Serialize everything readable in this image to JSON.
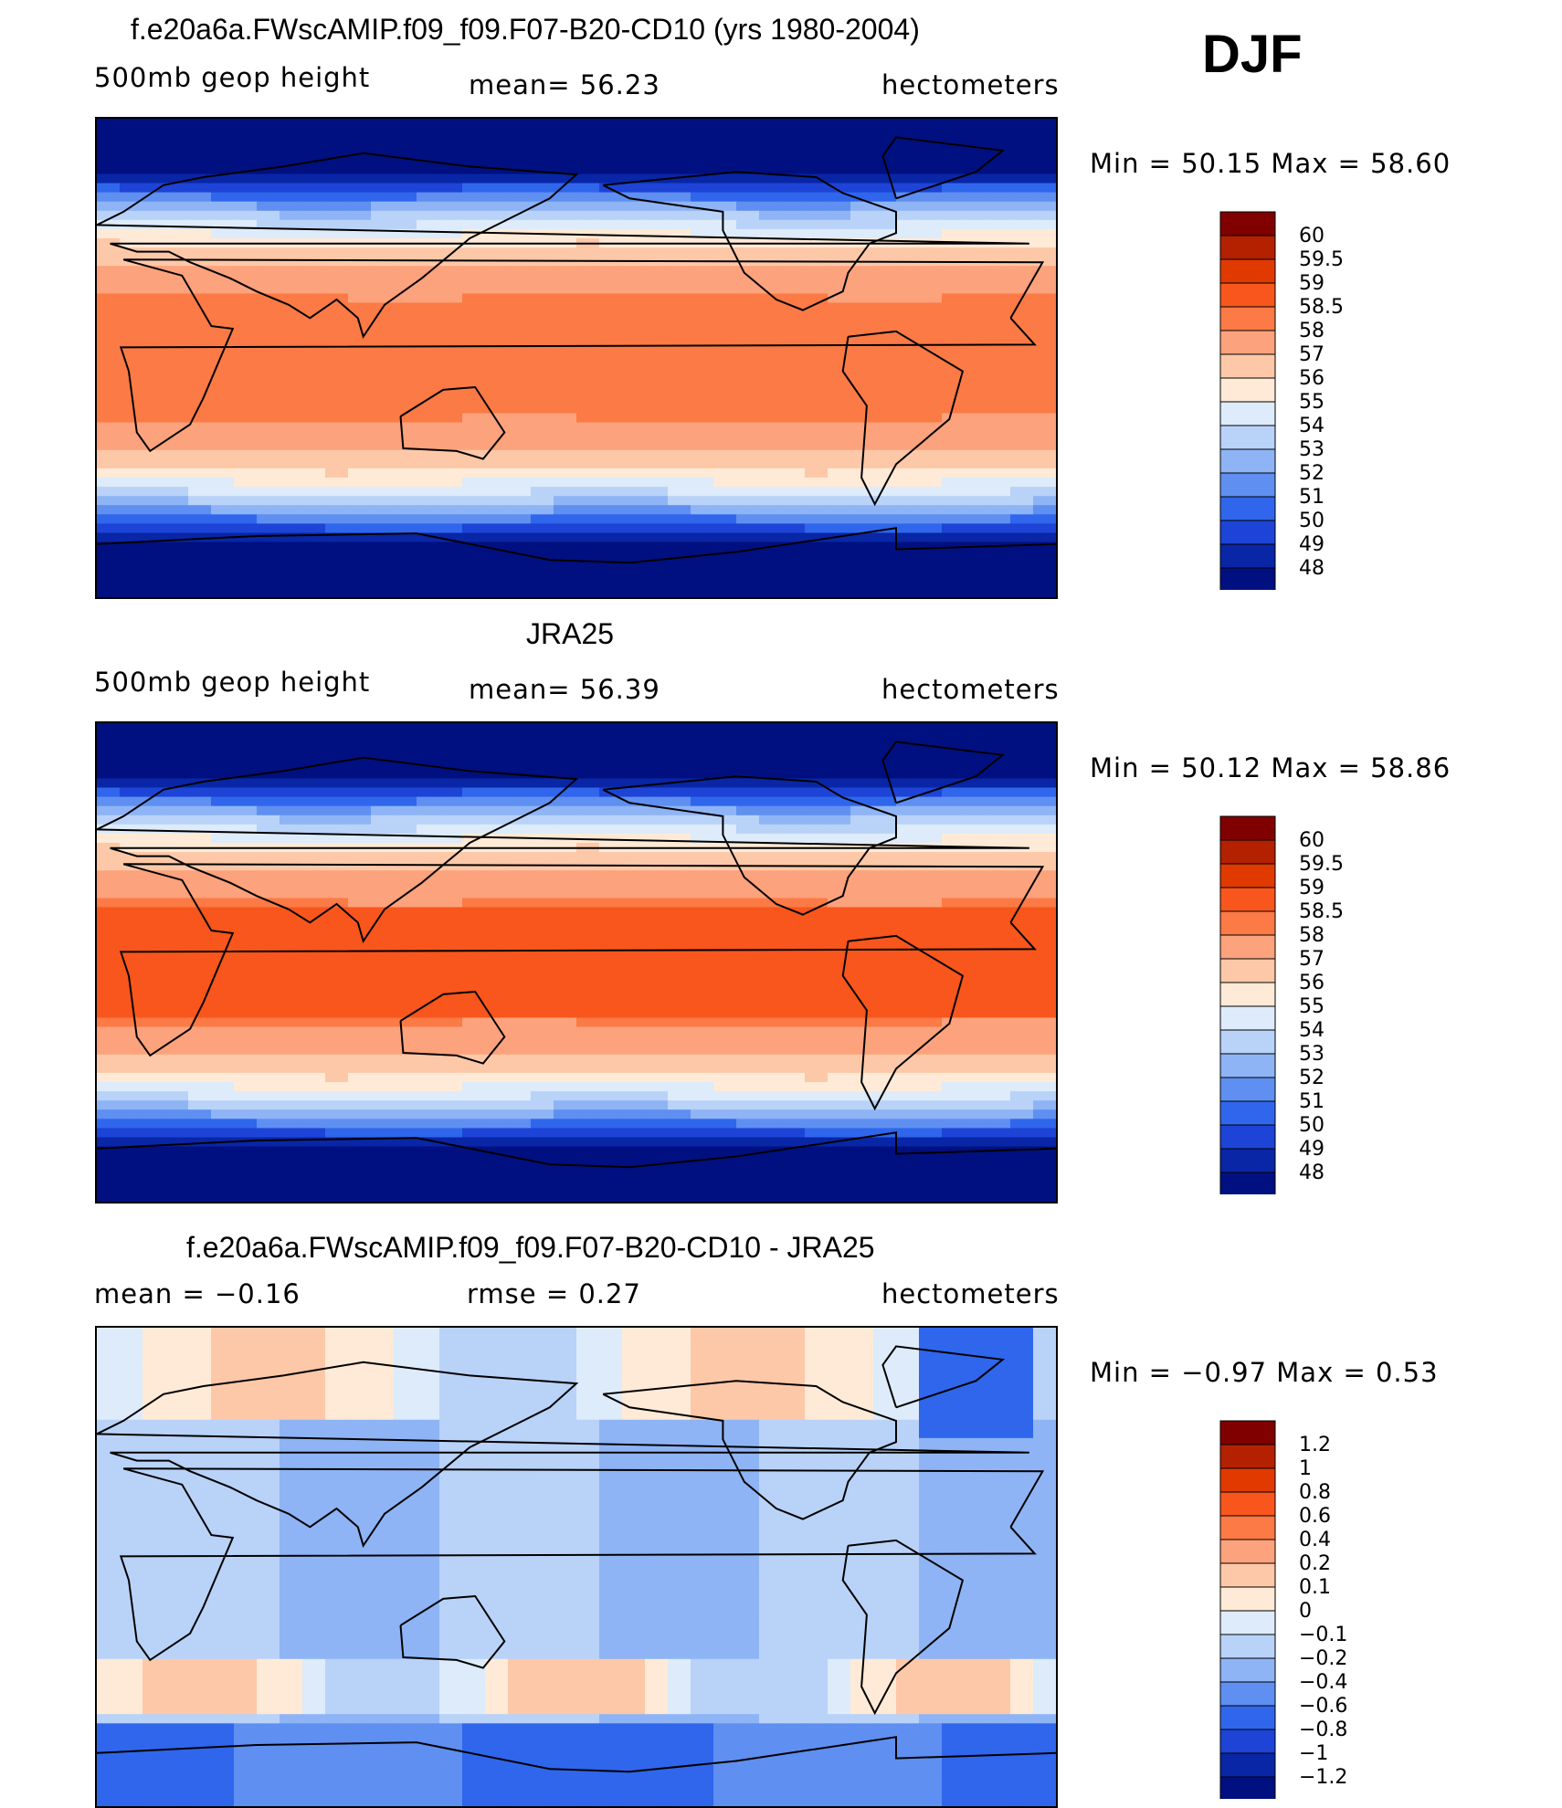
{
  "season": "DJF",
  "panels": [
    {
      "title": "f.e20a6a.FWscAMIP.f09_f09.F07-B20-CD10 (yrs 1980-2004)",
      "left_label": "500mb  geop  height",
      "center_label": "mean=   56.23",
      "right_label": "hectometers",
      "minmax": "Min  =    50.15  Max  =    58.60",
      "kind": "field",
      "colorbar_labels": [
        "60",
        "59.5",
        "59",
        "58.5",
        "58",
        "57",
        "56",
        "55",
        "54",
        "53",
        "52",
        "51",
        "50",
        "49",
        "48"
      ]
    },
    {
      "title": "JRA25",
      "left_label": "500mb  geop  height",
      "center_label": "mean=   56.39",
      "right_label": "hectometers",
      "minmax": "Min  =    50.12  Max  =    58.86",
      "kind": "field",
      "colorbar_labels": [
        "60",
        "59.5",
        "59",
        "58.5",
        "58",
        "57",
        "56",
        "55",
        "54",
        "53",
        "52",
        "51",
        "50",
        "49",
        "48"
      ]
    },
    {
      "title": "f.e20a6a.FWscAMIP.f09_f09.F07-B20-CD10 - JRA25",
      "left_label": "mean  =    −0.16",
      "center_label": "rmse  =     0.27",
      "right_label": "hectometers",
      "minmax": "Min  =    −0.97  Max  =      0.53",
      "kind": "diff",
      "colorbar_labels": [
        "1.2",
        "1",
        "0.8",
        "0.6",
        "0.4",
        "0.2",
        "0.1",
        "0",
        "−0.1",
        "−0.2",
        "−0.4",
        "−0.6",
        "−0.8",
        "−1",
        "−1.2"
      ]
    }
  ],
  "chart_data": {
    "type": "heatmap",
    "field_colors": [
      "#800000",
      "#B32100",
      "#E03A00",
      "#F8561C",
      "#FB7A45",
      "#FCA27C",
      "#FDC8A8",
      "#FEEAD6",
      "#DDEBFA",
      "#B9D2F8",
      "#8EB4F5",
      "#5F8FF0",
      "#2F66EC",
      "#1D44D6",
      "#0826A6",
      "#001080"
    ],
    "diff_colors": [
      "#800000",
      "#B32100",
      "#E03A00",
      "#F8561C",
      "#FB7A45",
      "#FCA27C",
      "#FDC8A8",
      "#FEEAD6",
      "#DDEBFA",
      "#B9D2F8",
      "#8EB4F5",
      "#5F8FF0",
      "#2F66EC",
      "#1D44D6",
      "#0826A6",
      "#001080"
    ],
    "panels": [
      {
        "name": "model",
        "units": "hectometers",
        "mean": 56.23,
        "min": 50.15,
        "max": 58.6
      },
      {
        "name": "JRA25",
        "units": "hectometers",
        "mean": 56.39,
        "min": 50.12,
        "max": 58.86
      },
      {
        "name": "model - JRA25",
        "units": "hectometers",
        "mean": -0.16,
        "rmse": 0.27,
        "min": -0.97,
        "max": 0.53
      }
    ]
  }
}
